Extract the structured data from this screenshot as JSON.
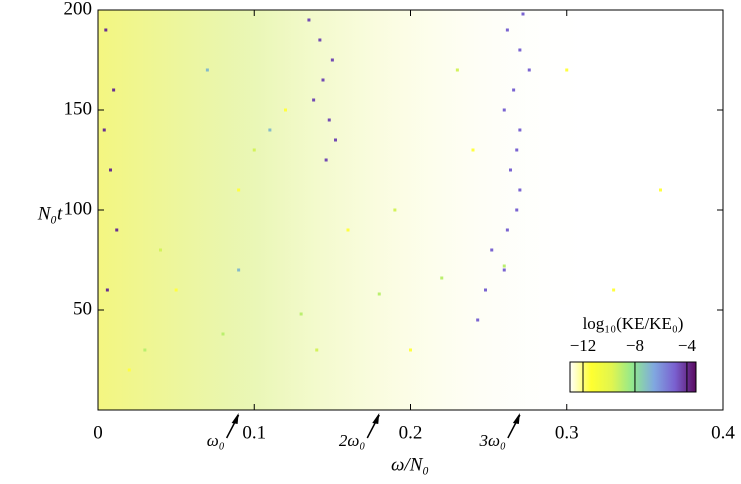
{
  "chart_data": {
    "type": "scatter",
    "xlabel": "ω/N₀",
    "ylabel": "N₀t",
    "xlim": [
      0,
      0.4
    ],
    "ylim": [
      0,
      200
    ],
    "xticks": [
      0,
      0.1,
      0.2,
      0.3,
      0.4
    ],
    "yticks": [
      50,
      100,
      150,
      200
    ],
    "x": [
      0.272,
      0.262,
      0.27,
      0.276,
      0.266,
      0.26,
      0.27,
      0.268,
      0.264,
      0.27,
      0.268,
      0.262,
      0.252,
      0.26,
      0.248,
      0.243,
      0.135,
      0.142,
      0.15,
      0.144,
      0.138,
      0.148,
      0.152,
      0.146,
      0.005,
      0.01,
      0.004,
      0.008,
      0.012,
      0.006,
      0.03,
      0.08,
      0.13,
      0.18,
      0.22,
      0.26,
      0.02,
      0.05,
      0.09,
      0.12,
      0.16,
      0.2,
      0.24,
      0.3,
      0.33,
      0.36,
      0.04,
      0.1,
      0.14,
      0.19,
      0.23,
      0.07,
      0.11,
      0.09
    ],
    "y": [
      198,
      190,
      180,
      170,
      160,
      150,
      140,
      130,
      120,
      110,
      100,
      90,
      80,
      70,
      60,
      45,
      195,
      185,
      175,
      165,
      155,
      145,
      135,
      125,
      190,
      160,
      140,
      120,
      90,
      60,
      30,
      38,
      48,
      58,
      66,
      72,
      20,
      60,
      110,
      150,
      90,
      30,
      130,
      170,
      60,
      110,
      80,
      130,
      30,
      100,
      170,
      170,
      140,
      70
    ],
    "color_values": [
      -5,
      -5,
      -5,
      -5,
      -5,
      -5,
      -5,
      -5,
      -5,
      -5,
      -5,
      -5,
      -5,
      -5,
      -5,
      -5,
      -4.5,
      -4.5,
      -4.5,
      -4.5,
      -4.5,
      -4.5,
      -4.5,
      -4.5,
      -4,
      -4,
      -4,
      -4,
      -4,
      -4,
      -9,
      -9,
      -9,
      -9,
      -9,
      -9,
      -11.5,
      -11.5,
      -11.5,
      -11.5,
      -11.5,
      -11.5,
      -11.5,
      -11.5,
      -11.5,
      -11.5,
      -9.5,
      -9.5,
      -9.5,
      -9.5,
      -9.5,
      -7,
      -7,
      -7
    ],
    "colorbar": {
      "label": "log₁₀(KE/KE₀)",
      "clim": [
        -13,
        -3.3
      ],
      "ticks": [
        {
          "value": -12,
          "label": "−12"
        },
        {
          "value": -8,
          "label": "−8"
        },
        {
          "value": -4,
          "label": "−4"
        }
      ],
      "colormap": [
        "#ffffff",
        "#ffff30",
        "#e0f550",
        "#90e890",
        "#80a8e0",
        "#7a60d0",
        "#5a0a60"
      ]
    },
    "annotations": [
      {
        "text": "ω₀",
        "x": 0.09
      },
      {
        "text": "2ω₀",
        "x": 0.18
      },
      {
        "text": "3ω₀",
        "x": 0.27
      }
    ]
  }
}
